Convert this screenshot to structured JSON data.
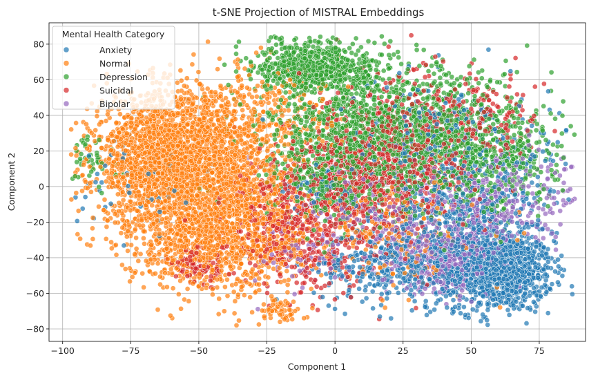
{
  "chart_data": {
    "type": "scatter",
    "title": "t-SNE Projection of MISTRAL Embeddings",
    "xlabel": "Component 1",
    "ylabel": "Component 2",
    "xlim": [
      -105,
      92
    ],
    "ylim": [
      -87,
      92
    ],
    "xticks": [
      -100,
      -75,
      -50,
      -25,
      0,
      25,
      50,
      75
    ],
    "yticks": [
      -80,
      -60,
      -40,
      -20,
      0,
      20,
      40,
      60,
      80
    ],
    "grid": true,
    "legend": {
      "title": "Mental Health Category",
      "position": "top-left"
    },
    "series": [
      {
        "name": "Anxiety",
        "color": "#1f77b4",
        "clusters": [
          {
            "cx": 62,
            "cy": -48,
            "sx": 9,
            "sy": 11,
            "n": 900
          },
          {
            "cx": 45,
            "cy": -35,
            "sx": 14,
            "sy": 16,
            "n": 500
          },
          {
            "cx": 20,
            "cy": -45,
            "sx": 14,
            "sy": 10,
            "n": 300
          },
          {
            "cx": 55,
            "cy": 5,
            "sx": 15,
            "sy": 25,
            "n": 300
          },
          {
            "cx": 35,
            "cy": 20,
            "sx": 18,
            "sy": 20,
            "n": 200
          },
          {
            "cx": -5,
            "cy": 0,
            "sx": 8,
            "sy": 6,
            "n": 60
          },
          {
            "cx": -70,
            "cy": 5,
            "sx": 12,
            "sy": 15,
            "n": 60
          }
        ]
      },
      {
        "name": "Normal",
        "color": "#ff7f0e",
        "clusters": [
          {
            "cx": -65,
            "cy": 15,
            "sx": 12,
            "sy": 18,
            "n": 1600
          },
          {
            "cx": -45,
            "cy": 20,
            "sx": 12,
            "sy": 20,
            "n": 1000
          },
          {
            "cx": -50,
            "cy": -30,
            "sx": 14,
            "sy": 14,
            "n": 800
          },
          {
            "cx": -28,
            "cy": -20,
            "sx": 10,
            "sy": 20,
            "n": 500
          },
          {
            "cx": -20,
            "cy": -70,
            "sx": 4,
            "sy": 4,
            "n": 60
          },
          {
            "cx": 20,
            "cy": -25,
            "sx": 15,
            "sy": 15,
            "n": 250
          },
          {
            "cx": -15,
            "cy": 40,
            "sx": 10,
            "sy": 12,
            "n": 150
          }
        ]
      },
      {
        "name": "Depression",
        "color": "#2ca02c",
        "clusters": [
          {
            "cx": -8,
            "cy": 68,
            "sx": 10,
            "sy": 7,
            "n": 700
          },
          {
            "cx": 15,
            "cy": 30,
            "sx": 20,
            "sy": 20,
            "n": 1200
          },
          {
            "cx": 45,
            "cy": 25,
            "sx": 15,
            "sy": 20,
            "n": 500
          },
          {
            "cx": 0,
            "cy": 5,
            "sx": 10,
            "sy": 15,
            "n": 300
          },
          {
            "cx": -90,
            "cy": 15,
            "sx": 5,
            "sy": 8,
            "n": 50
          },
          {
            "cx": 65,
            "cy": 15,
            "sx": 10,
            "sy": 15,
            "n": 200
          }
        ]
      },
      {
        "name": "Suicidal",
        "color": "#d62728",
        "clusters": [
          {
            "cx": 10,
            "cy": 5,
            "sx": 15,
            "sy": 20,
            "n": 700
          },
          {
            "cx": 30,
            "cy": 25,
            "sx": 15,
            "sy": 20,
            "n": 400
          },
          {
            "cx": -20,
            "cy": -20,
            "sx": 10,
            "sy": 15,
            "n": 300
          },
          {
            "cx": -50,
            "cy": -45,
            "sx": 5,
            "sy": 5,
            "n": 100
          },
          {
            "cx": 55,
            "cy": 40,
            "sx": 10,
            "sy": 10,
            "n": 100
          },
          {
            "cx": -5,
            "cy": -35,
            "sx": 10,
            "sy": 15,
            "n": 150
          }
        ]
      },
      {
        "name": "Bipolar",
        "color": "#9467bd",
        "clusters": [
          {
            "cx": 40,
            "cy": -40,
            "sx": 10,
            "sy": 10,
            "n": 350
          },
          {
            "cx": 60,
            "cy": -10,
            "sx": 10,
            "sy": 15,
            "n": 250
          },
          {
            "cx": 20,
            "cy": -15,
            "sx": 15,
            "sy": 15,
            "n": 200
          },
          {
            "cx": -10,
            "cy": -40,
            "sx": 10,
            "sy": 10,
            "n": 80
          },
          {
            "cx": 80,
            "cy": 0,
            "sx": 5,
            "sy": 10,
            "n": 40
          }
        ]
      }
    ]
  }
}
